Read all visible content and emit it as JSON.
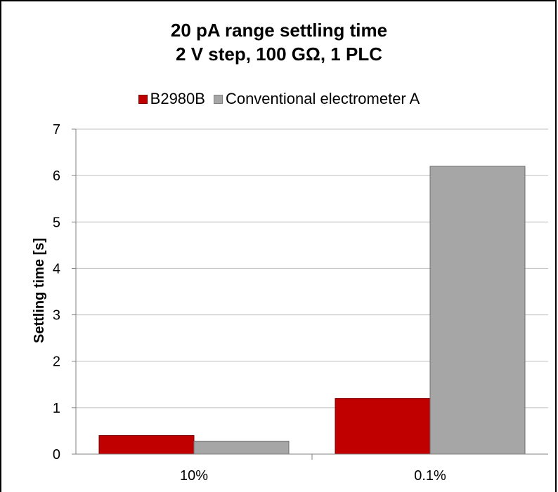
{
  "chart_data": {
    "type": "bar",
    "title": "20 pA range settling time",
    "subtitle": "2 V step, 100 GΩ, 1 PLC",
    "xlabel": "",
    "ylabel": "Settling time [s]",
    "categories": [
      "10%",
      "0.1%"
    ],
    "series": [
      {
        "name": "B2980B",
        "values": [
          0.4,
          1.2
        ],
        "color": "#c00000"
      },
      {
        "name": "Conventional electrometer A",
        "values": [
          0.28,
          6.2
        ],
        "color": "#a6a6a6"
      }
    ],
    "ylim": [
      0,
      7
    ],
    "yticks": [
      0,
      1,
      2,
      3,
      4,
      5,
      6,
      7
    ],
    "grid": true,
    "legend_position": "top"
  }
}
